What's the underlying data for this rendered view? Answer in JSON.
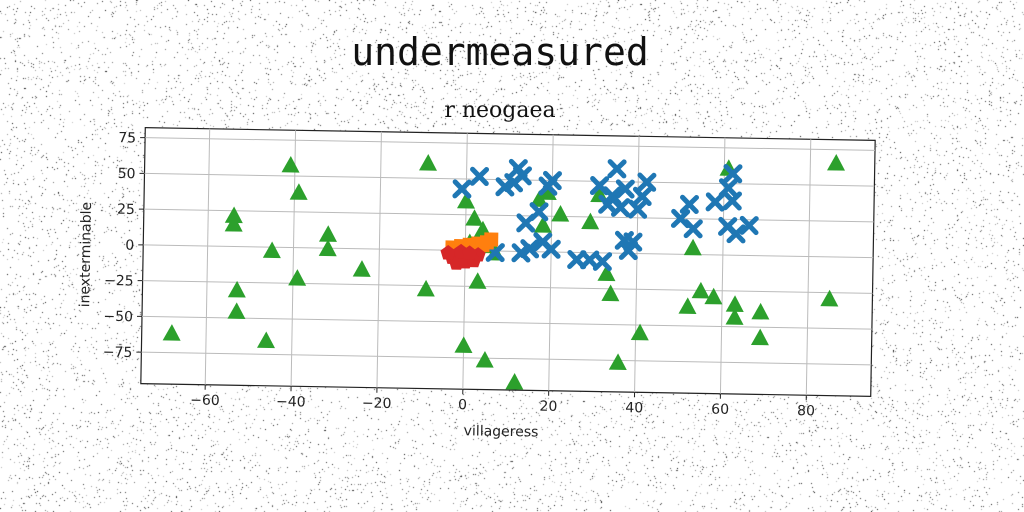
{
  "suptitle": "undermeasured",
  "chart_data": {
    "type": "scatter",
    "title": "r neogaea",
    "xlabel": "villageress",
    "ylabel": "inexterminable",
    "xlim": [
      -75,
      95
    ],
    "ylim": [
      -97,
      82
    ],
    "xticks": [
      -60,
      -40,
      -20,
      0,
      20,
      40,
      60,
      80
    ],
    "yticks": [
      -75,
      -50,
      -25,
      0,
      25,
      50,
      75
    ],
    "grid": true,
    "legend": "none",
    "series": [
      {
        "marker": "triangle",
        "color": "#2ca02c",
        "points": [
          [
            -41,
            57
          ],
          [
            -39,
            38
          ],
          [
            -54,
            21
          ],
          [
            -54,
            15
          ],
          [
            -32,
            9
          ],
          [
            -32,
            -1
          ],
          [
            -45,
            -3
          ],
          [
            -24,
            -15
          ],
          [
            -39,
            -22
          ],
          [
            -53,
            -31
          ],
          [
            -53,
            -46
          ],
          [
            -46,
            -66
          ],
          [
            -68,
            -62
          ],
          [
            -9,
            60
          ],
          [
            -9,
            -28
          ],
          [
            0,
            34
          ],
          [
            2,
            22
          ],
          [
            4,
            14
          ],
          [
            1,
            5
          ],
          [
            6,
            3
          ],
          [
            7,
            -2
          ],
          [
            3,
            -22
          ],
          [
            0,
            -67
          ],
          [
            5,
            -77
          ],
          [
            12,
            -92
          ],
          [
            17,
            36
          ],
          [
            19,
            41
          ],
          [
            22,
            26
          ],
          [
            18,
            18
          ],
          [
            29,
            21
          ],
          [
            31,
            40
          ],
          [
            33,
            -15
          ],
          [
            34,
            -29
          ],
          [
            41,
            -56
          ],
          [
            36,
            -77
          ],
          [
            53,
            4
          ],
          [
            55,
            -26
          ],
          [
            52,
            -37
          ],
          [
            58,
            -30
          ],
          [
            61,
            60
          ],
          [
            63,
            -35
          ],
          [
            63,
            -44
          ],
          [
            69,
            -40
          ],
          [
            69,
            -58
          ],
          [
            86,
            65
          ],
          [
            85,
            -30
          ]
        ]
      },
      {
        "marker": "x",
        "color": "#1f77b4",
        "points": [
          [
            -1,
            43
          ],
          [
            3,
            52
          ],
          [
            9,
            45
          ],
          [
            11,
            48
          ],
          [
            12,
            58
          ],
          [
            13,
            53
          ],
          [
            19,
            46
          ],
          [
            20,
            50
          ],
          [
            14,
            20
          ],
          [
            17,
            28
          ],
          [
            18,
            7
          ],
          [
            20,
            2
          ],
          [
            15,
            2
          ],
          [
            13,
            -1
          ],
          [
            7,
            -1
          ],
          [
            26,
            -5
          ],
          [
            29,
            -5
          ],
          [
            32,
            -6
          ],
          [
            31,
            47
          ],
          [
            34,
            40
          ],
          [
            33,
            34
          ],
          [
            36,
            32
          ],
          [
            37,
            45
          ],
          [
            35,
            59
          ],
          [
            41,
            40
          ],
          [
            42,
            50
          ],
          [
            40,
            31
          ],
          [
            39,
            8
          ],
          [
            38,
            2
          ],
          [
            37,
            9
          ],
          [
            50,
            25
          ],
          [
            52,
            35
          ],
          [
            53,
            18
          ],
          [
            58,
            37
          ],
          [
            61,
            20
          ],
          [
            61,
            47
          ],
          [
            62,
            38
          ],
          [
            62,
            57
          ],
          [
            63,
            15
          ],
          [
            66,
            21
          ]
        ]
      },
      {
        "marker": "square",
        "color": "#ff7f0e",
        "points": [
          [
            -3,
            2
          ],
          [
            -1,
            3
          ],
          [
            1,
            4
          ],
          [
            3,
            5
          ],
          [
            5,
            6
          ],
          [
            6,
            8
          ],
          [
            -2,
            -1
          ],
          [
            0,
            1
          ],
          [
            2,
            3
          ],
          [
            4,
            4
          ]
        ]
      },
      {
        "marker": "pentagon",
        "color": "#d62728",
        "points": [
          [
            -3,
            -5
          ],
          [
            -1,
            -6
          ],
          [
            1,
            -4
          ],
          [
            3,
            -3
          ],
          [
            -2,
            -9
          ],
          [
            0,
            -8
          ],
          [
            2,
            -7
          ],
          [
            -4,
            -2
          ],
          [
            -1,
            -1
          ],
          [
            1,
            -2
          ]
        ]
      }
    ]
  }
}
